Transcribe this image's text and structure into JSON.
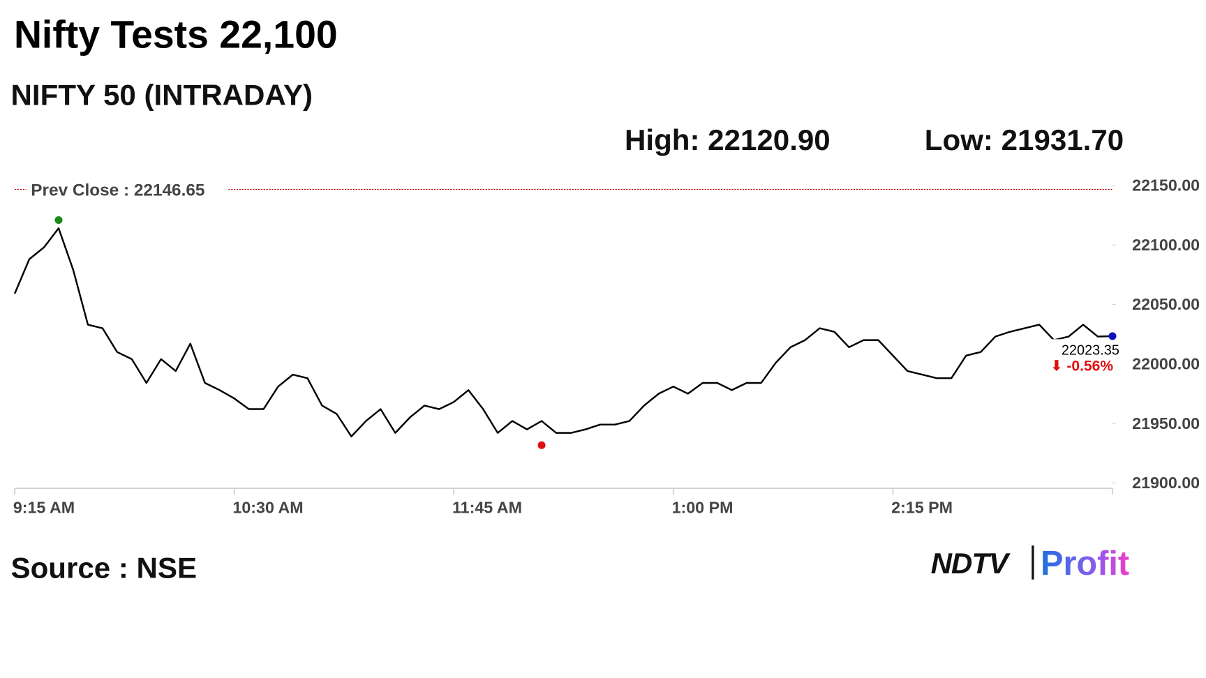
{
  "chart_data": {
    "type": "line",
    "title": "Nifty Tests 22,100",
    "subtitle": "NIFTY 50 (INTRADAY)",
    "high": {
      "label": "High: 22120.90",
      "value": 22120.9,
      "x": "9:30 AM",
      "color": "#1a8a1a"
    },
    "low": {
      "label": "Low: 21931.70",
      "value": 21931.7,
      "x": "12:15 PM",
      "color": "#e01010"
    },
    "prev_close": {
      "label": "Prev Close : 22146.65",
      "value": 22146.65,
      "color": "#c00000"
    },
    "change_label": "⬇ -0.56%",
    "last_color": "#1010c0",
    "source": "Source : NSE",
    "logo": {
      "left": "NDTV",
      "right": "Profit"
    },
    "x": [
      "9:15 AM",
      "9:20 AM",
      "9:25 AM",
      "9:30 AM",
      "9:35 AM",
      "9:40 AM",
      "9:45 AM",
      "9:50 AM",
      "9:55 AM",
      "10:00 AM",
      "10:05 AM",
      "10:10 AM",
      "10:15 AM",
      "10:20 AM",
      "10:25 AM",
      "10:30 AM",
      "10:35 AM",
      "10:40 AM",
      "10:45 AM",
      "10:50 AM",
      "10:55 AM",
      "11:00 AM",
      "11:05 AM",
      "11:10 AM",
      "11:15 AM",
      "11:20 AM",
      "11:25 AM",
      "11:30 AM",
      "11:35 AM",
      "11:40 AM",
      "11:45 AM",
      "11:50 AM",
      "11:55 AM",
      "12:00 PM",
      "12:05 PM",
      "12:10 PM",
      "12:15 PM",
      "12:20 PM",
      "12:25 PM",
      "12:30 PM",
      "12:35 PM",
      "12:40 PM",
      "12:45 PM",
      "12:50 PM",
      "12:55 PM",
      "1:00 PM",
      "1:05 PM",
      "1:10 PM",
      "1:15 PM",
      "1:20 PM",
      "1:25 PM",
      "1:30 PM",
      "1:35 PM",
      "1:40 PM",
      "1:45 PM",
      "1:50 PM",
      "1:55 PM",
      "2:00 PM",
      "2:05 PM",
      "2:10 PM",
      "2:15 PM",
      "2:20 PM",
      "2:25 PM",
      "2:30 PM",
      "2:35 PM",
      "2:40 PM",
      "2:45 PM",
      "2:50 PM",
      "2:55 PM",
      "3:00 PM",
      "3:05 PM",
      "3:10 PM",
      "3:15 PM",
      "3:20 PM",
      "3:25 PM",
      "3:30 PM"
    ],
    "series": [
      {
        "name": "NIFTY 50",
        "color": "#000000",
        "values": [
          22059,
          22088,
          22098,
          22114,
          22079,
          22033,
          22030,
          22010,
          22004,
          21984,
          22004,
          21994,
          22017,
          21984,
          21978,
          21971,
          21962,
          21962,
          21981,
          21991,
          21988,
          21965,
          21958,
          21939,
          21952,
          21962,
          21942,
          21955,
          21965,
          21962,
          21968,
          21978,
          21962,
          21942,
          21952,
          21945,
          21952,
          21942,
          21942,
          21945,
          21949,
          21949,
          21952,
          21965,
          21975,
          21981,
          21975,
          21984,
          21984,
          21978,
          21984,
          21984,
          22001,
          22014,
          22020,
          22030,
          22027,
          22014,
          22020,
          22020,
          22007,
          21994,
          21991,
          21988,
          21988,
          22007,
          22010,
          22023,
          22027,
          22030,
          22033,
          22020,
          22023,
          22033,
          22023,
          22023.35
        ]
      }
    ],
    "xticks": [
      "9:15 AM",
      "10:30 AM",
      "11:45 AM",
      "1:00 PM",
      "2:15 PM"
    ],
    "ylim": [
      21900,
      22150
    ],
    "yticks": [
      {
        "value": 21900,
        "label": "21900.00"
      },
      {
        "value": 21950,
        "label": "21950.00"
      },
      {
        "value": 22000,
        "label": "22000.00"
      },
      {
        "value": 22050,
        "label": "22050.00"
      },
      {
        "value": 22100,
        "label": "22100.00"
      },
      {
        "value": 22150,
        "label": "22150.00"
      }
    ],
    "grid": false
  }
}
